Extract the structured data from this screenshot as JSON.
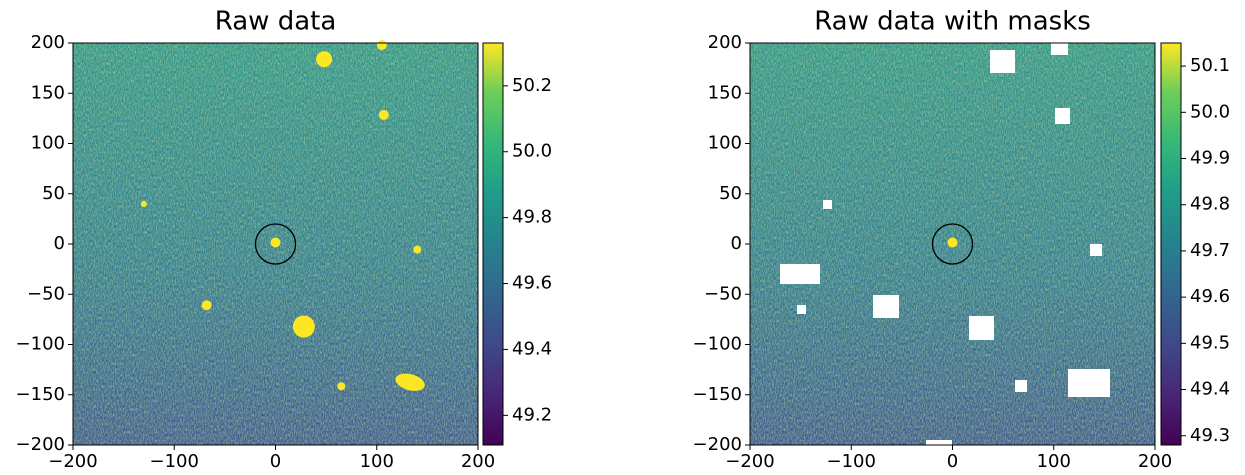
{
  "chart_data": [
    {
      "type": "image",
      "title": "Raw data",
      "xlim": [
        -200,
        200
      ],
      "ylim": [
        -200,
        200
      ],
      "xticks": [
        {
          "value": -200,
          "label": "−200"
        },
        {
          "value": -100,
          "label": "−100"
        },
        0,
        100,
        200
      ],
      "yticks": [
        {
          "value": -200,
          "label": "−200"
        },
        {
          "value": -150,
          "label": "−150"
        },
        {
          "value": -100,
          "label": "−100"
        },
        {
          "value": -50,
          "label": "−50"
        },
        0,
        50,
        100,
        150,
        200
      ],
      "clim": [
        49.11,
        50.33
      ],
      "cticks": [
        49.2,
        49.4,
        49.6,
        49.8,
        {
          "value": 50,
          "label": "50.0"
        },
        50.2
      ]
    },
    {
      "type": "image",
      "title": "Raw data with masks",
      "xlim": [
        -200,
        200
      ],
      "ylim": [
        -200,
        200
      ],
      "xticks": [
        {
          "value": -200,
          "label": "−200"
        },
        {
          "value": -100,
          "label": "−100"
        },
        0,
        100,
        200
      ],
      "yticks": [
        {
          "value": -200,
          "label": "−200"
        },
        {
          "value": -150,
          "label": "−150"
        },
        {
          "value": -100,
          "label": "−100"
        },
        {
          "value": -50,
          "label": "−50"
        },
        0,
        50,
        100,
        150,
        200
      ],
      "clim": [
        49.28,
        50.15
      ],
      "cticks": [
        49.3,
        49.4,
        49.5,
        49.6,
        49.7,
        49.8,
        49.9,
        {
          "value": 50,
          "label": "50.0"
        },
        50.1
      ]
    }
  ]
}
